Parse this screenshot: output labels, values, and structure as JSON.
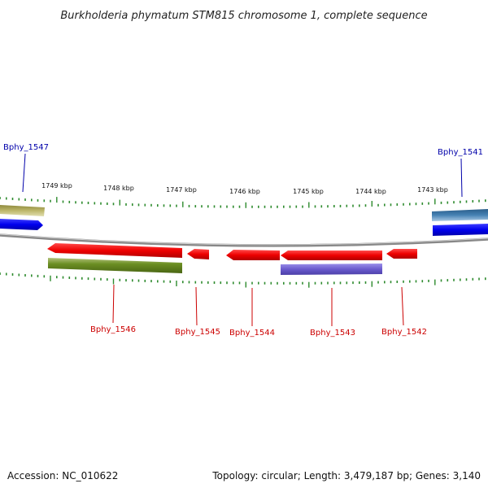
{
  "title": "Burkholderia phymatum STM815 chromosome 1, complete sequence",
  "footer": {
    "accession": "Accession: NC_010622",
    "topology": "Topology: circular; Length: 3,479,187 bp; Genes: 3,140"
  },
  "colors": {
    "backbone": "#888888",
    "tick": "#2e8b2e",
    "forward_label": "#0000aa",
    "reverse_label": "#cc0000",
    "red_gene": "#ee0000",
    "olive_gene": "#6b8e23",
    "purple_gene": "#6a5acd",
    "blue_gene": "#0000ee",
    "steel_gene": "#4682b4",
    "khaki_gene": "#bdb76b"
  },
  "kbp_ticks": [
    "1749 kbp",
    "1748 kbp",
    "1747 kbp",
    "1746 kbp",
    "1745 kbp",
    "1744 kbp",
    "1743 kbp"
  ],
  "gene_labels": [
    {
      "name": "Bphy_1547",
      "strand": "forward"
    },
    {
      "name": "Bphy_1541",
      "strand": "forward"
    },
    {
      "name": "Bphy_1546",
      "strand": "reverse"
    },
    {
      "name": "Bphy_1545",
      "strand": "reverse"
    },
    {
      "name": "Bphy_1544",
      "strand": "reverse"
    },
    {
      "name": "Bphy_1543",
      "strand": "reverse"
    },
    {
      "name": "Bphy_1542",
      "strand": "reverse"
    }
  ]
}
